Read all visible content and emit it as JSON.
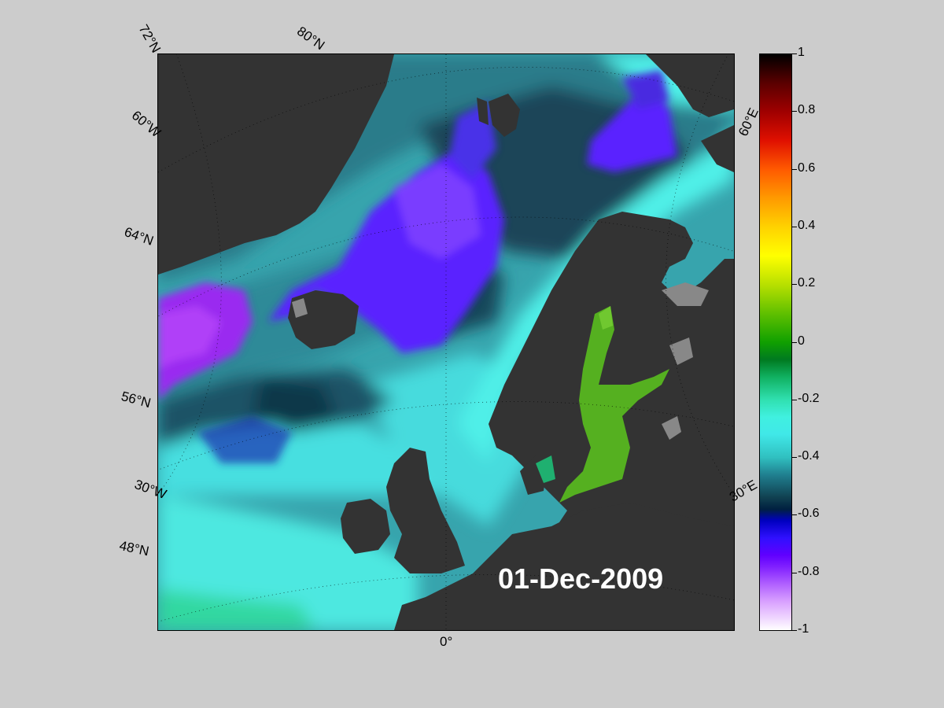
{
  "map": {
    "date": "01-Dec-2009",
    "labels": {
      "lat72": "72°N",
      "lat80": "80°N",
      "lat64": "64°N",
      "lat56": "56°N",
      "lat48": "48°N",
      "lon60w": "60°W",
      "lon30w": "30°W",
      "lon0": "0°",
      "lon30e": "30°E",
      "lon60e": "60°E"
    },
    "colors": {
      "land": "#333333",
      "ice_land": "#888888",
      "deep_purple": "#9a2af0",
      "blue_violet": "#5a20ff",
      "dark_teal": "#1c4a5a",
      "teal": "#2a8c96",
      "cyan": "#40e0e0",
      "green_baltic": "#50b020"
    }
  },
  "colorbar": {
    "ticks": [
      "1",
      "0.8",
      "0.6",
      "0.4",
      "0.2",
      "0",
      "-0.2",
      "-0.4",
      "-0.6",
      "-0.8",
      "-1"
    ],
    "min": -1,
    "max": 1
  }
}
